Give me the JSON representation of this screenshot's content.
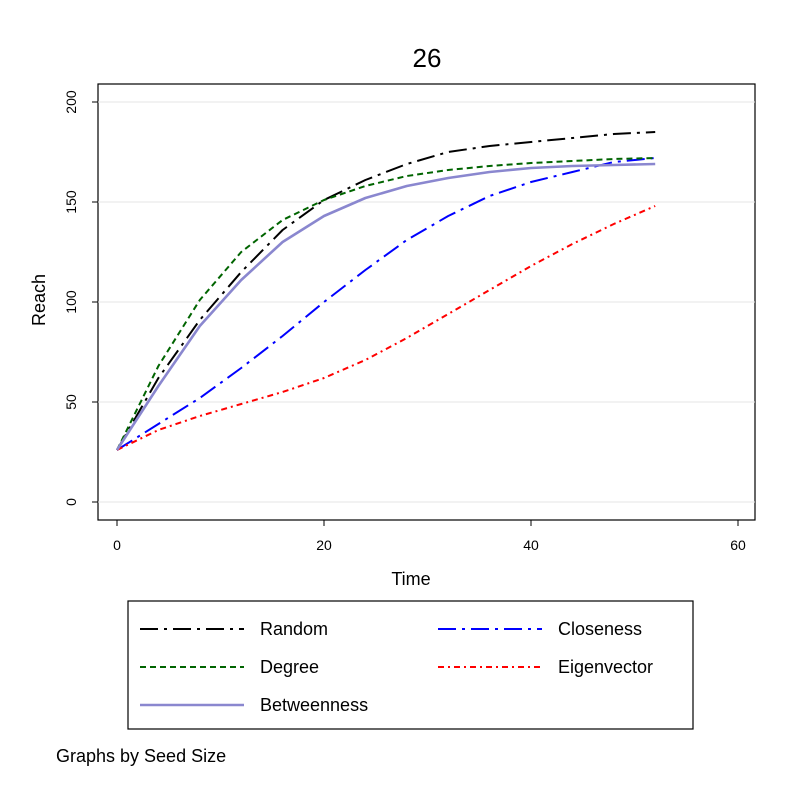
{
  "chart_data": {
    "type": "line",
    "title": "26",
    "xlabel": "Time",
    "ylabel": "Reach",
    "xlim": [
      0,
      60
    ],
    "ylim": [
      0,
      200
    ],
    "x_ticks": [
      "0",
      "20",
      "40",
      "60"
    ],
    "y_ticks": [
      "0",
      "50",
      "100",
      "150",
      "200"
    ],
    "grid": "horizontal",
    "legend_position": "bottom",
    "note": "Graphs by Seed Size",
    "series": [
      {
        "name": "Random",
        "color": "#000000",
        "style": "long-dash-dot",
        "x": [
          0,
          4,
          8,
          12,
          16,
          20,
          24,
          28,
          32,
          36,
          40,
          44,
          48,
          52
        ],
        "y": [
          26,
          62,
          91,
          115,
          136,
          151,
          161,
          169,
          175,
          178,
          180,
          182,
          184,
          185
        ]
      },
      {
        "name": "Closeness",
        "color": "#0000ff",
        "style": "long-dash-dot",
        "x": [
          0,
          4,
          8,
          12,
          16,
          20,
          24,
          28,
          32,
          36,
          40,
          44,
          48,
          52
        ],
        "y": [
          26,
          39,
          52,
          67,
          83,
          100,
          116,
          131,
          143,
          153,
          160,
          165,
          170,
          172
        ]
      },
      {
        "name": "Degree",
        "color": "#006400",
        "style": "short-dash",
        "x": [
          0,
          4,
          8,
          12,
          16,
          20,
          24,
          28,
          32,
          36,
          40,
          44,
          48,
          52
        ],
        "y": [
          26,
          68,
          101,
          125,
          141,
          151,
          158,
          163,
          166,
          168,
          169.5,
          170.5,
          171.5,
          172
        ]
      },
      {
        "name": "Eigenvector",
        "color": "#ff0000",
        "style": "dash-dot",
        "x": [
          0,
          4,
          8,
          12,
          16,
          20,
          24,
          28,
          32,
          36,
          40,
          44,
          48,
          52
        ],
        "y": [
          26,
          36,
          43,
          49,
          55,
          62,
          71,
          82,
          94,
          106,
          118,
          129,
          139,
          148
        ]
      },
      {
        "name": "Betweenness",
        "color": "#8a87cf",
        "style": "solid",
        "x": [
          0,
          4,
          8,
          12,
          16,
          20,
          24,
          28,
          32,
          36,
          40,
          44,
          48,
          52
        ],
        "y": [
          26,
          58,
          88,
          111,
          130,
          143,
          152,
          158,
          162,
          165,
          167,
          168,
          168.5,
          169
        ]
      }
    ],
    "legend_layout": [
      [
        "Random",
        "Closeness"
      ],
      [
        "Degree",
        "Eigenvector"
      ],
      [
        "Betweenness"
      ]
    ]
  }
}
